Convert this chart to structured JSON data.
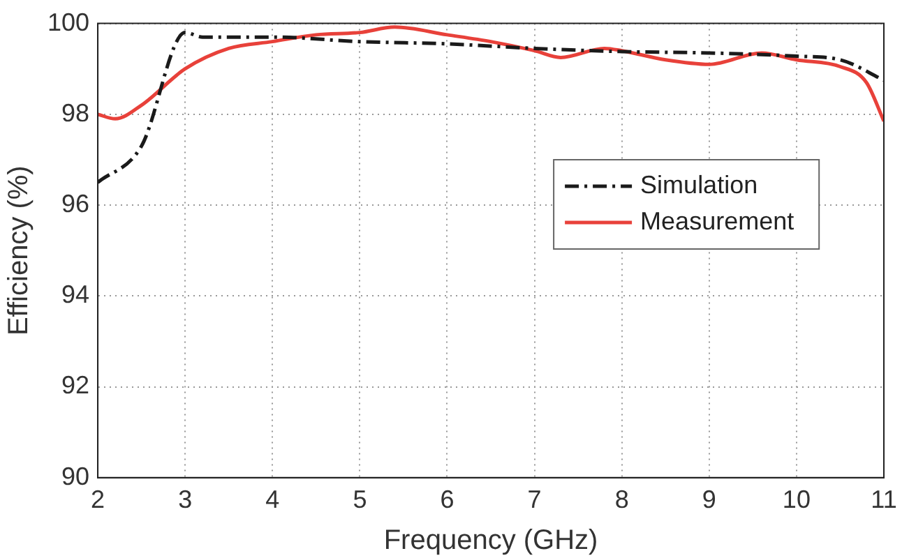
{
  "chart_data": {
    "type": "line",
    "xlabel": "Frequency (GHz)",
    "ylabel": "Efficiency (%)",
    "xlim": [
      2,
      11
    ],
    "xticks": [
      2,
      3,
      4,
      5,
      6,
      7,
      8,
      9,
      10,
      11
    ],
    "ylim": [
      90,
      100
    ],
    "yticks": [
      90,
      92,
      94,
      96,
      98,
      100
    ],
    "grid": true,
    "legend": "right",
    "marker": "none",
    "series": [
      {
        "name": "Simulation",
        "color": "#1a1a1a",
        "line_style": "dashed",
        "x": [
          2,
          2.5,
          3,
          3.2,
          4,
          5,
          6,
          7,
          8,
          9,
          10,
          10.5,
          11
        ],
        "values": [
          96.5,
          97.3,
          99.8,
          99.7,
          99.7,
          99.6,
          99.55,
          99.45,
          99.38,
          99.35,
          99.28,
          99.2,
          98.75
        ]
      },
      {
        "name": "Measurement",
        "color": "#e8413a",
        "line_style": "solid",
        "x": [
          2,
          2.2,
          2.5,
          3,
          3.5,
          4,
          4.5,
          5,
          5.4,
          6,
          6.5,
          7,
          7.3,
          7.8,
          8,
          8.5,
          9,
          9.6,
          10,
          10.5,
          10.8,
          11
        ],
        "values": [
          98.0,
          97.9,
          98.2,
          99.0,
          99.45,
          99.6,
          99.75,
          99.8,
          99.92,
          99.75,
          99.6,
          99.4,
          99.25,
          99.45,
          99.4,
          99.2,
          99.1,
          99.35,
          99.2,
          99.05,
          98.7,
          97.85
        ]
      }
    ]
  }
}
